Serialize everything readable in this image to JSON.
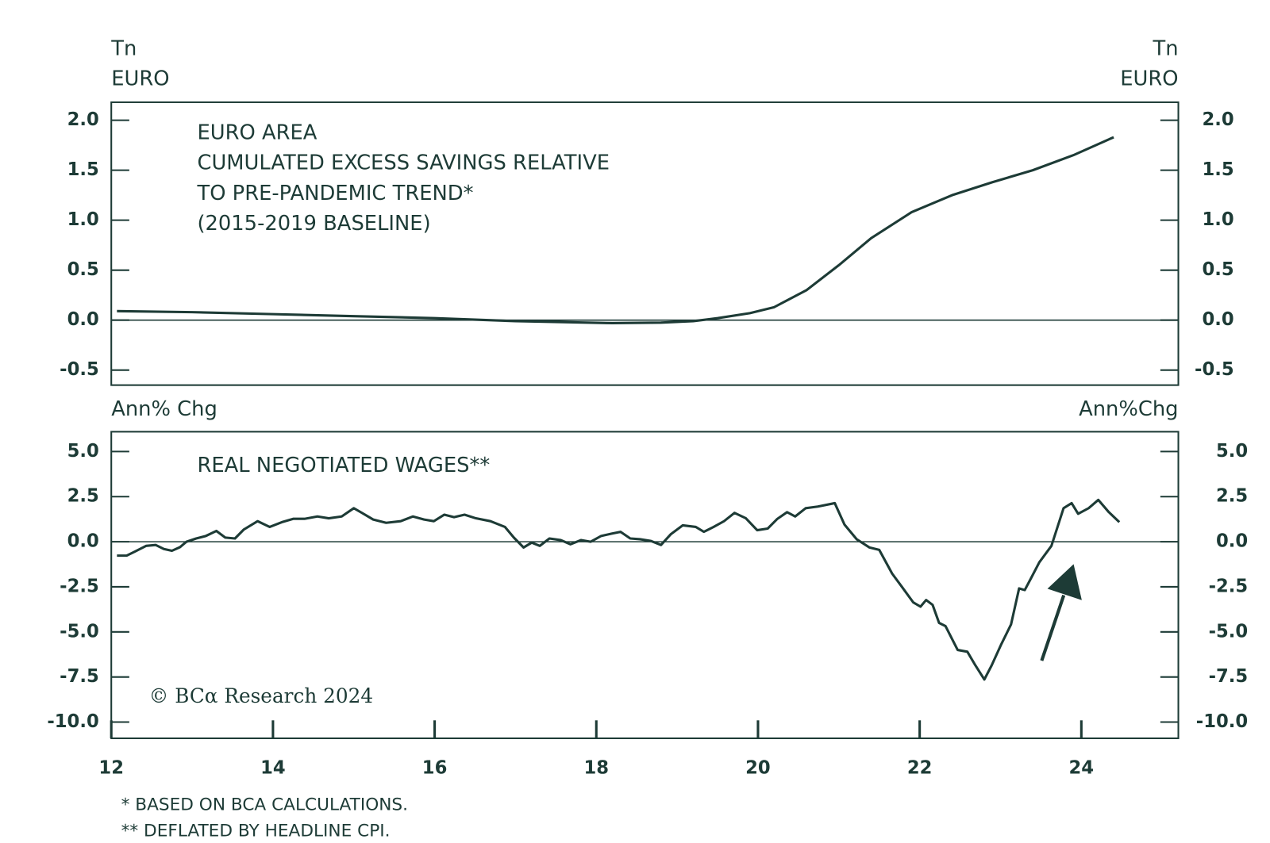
{
  "chart_data": [
    {
      "type": "line",
      "title": [
        "EURO AREA",
        "CUMULATED EXCESS SAVINGS RELATIVE",
        "TO PRE-PANDEMIC TREND*",
        "(2015-2019 BASELINE)"
      ],
      "y_label": [
        "Tn",
        "EURO"
      ],
      "y_label_right": [
        "Tn",
        "EURO"
      ],
      "color": "#1d3b36",
      "xlim": [
        12,
        25.2
      ],
      "ylim": [
        -0.65,
        2.18
      ],
      "yticks": [
        {
          "value": 2,
          "label": "2.0"
        },
        {
          "value": 1.5,
          "label": "1.5"
        },
        {
          "value": 1,
          "label": "1.0"
        },
        {
          "value": 0.5,
          "label": "0.5"
        },
        {
          "value": 0,
          "label": "0.0"
        },
        {
          "value": -0.5,
          "label": "-0.5"
        }
      ],
      "zero_line": true,
      "x": [
        12.07,
        13,
        14,
        15,
        16,
        17,
        17.6,
        18.2,
        18.8,
        19.2,
        19.5,
        19.9,
        20.2,
        20.6,
        21,
        21.4,
        21.9,
        22.4,
        22.9,
        23.4,
        23.9,
        24.4
      ],
      "values": [
        0.09,
        0.08,
        0.06,
        0.04,
        0.02,
        -0.01,
        -0.02,
        -0.03,
        -0.025,
        -0.01,
        0.02,
        0.07,
        0.13,
        0.3,
        0.55,
        0.82,
        1.08,
        1.25,
        1.38,
        1.5,
        1.65,
        1.83
      ]
    },
    {
      "type": "line",
      "title": [
        "REAL NEGOTIATED WAGES**"
      ],
      "y_label": [
        "Ann% Chg"
      ],
      "y_label_right": [
        "Ann%Chg"
      ],
      "color": "#1d3b36",
      "xlim": [
        12,
        25.2
      ],
      "xticks": [
        12,
        14,
        16,
        18,
        20,
        22,
        24
      ],
      "ylim": [
        -10.9,
        6.1
      ],
      "yticks": [
        {
          "value": 5,
          "label": "5.0"
        },
        {
          "value": 2.5,
          "label": "2.5"
        },
        {
          "value": 0,
          "label": "0.0"
        },
        {
          "value": -2.5,
          "label": "-2.5"
        },
        {
          "value": -5,
          "label": "-5.0"
        },
        {
          "value": -7.5,
          "label": "-7.5"
        },
        {
          "value": -10,
          "label": "-10.0"
        }
      ],
      "zero_line": true,
      "x": [
        12.07,
        12.19,
        12.29,
        12.43,
        12.55,
        12.65,
        12.75,
        12.85,
        12.93,
        13.05,
        13.17,
        13.3,
        13.41,
        13.53,
        13.64,
        13.81,
        13.96,
        14.12,
        14.25,
        14.39,
        14.55,
        14.69,
        14.85,
        15.0,
        15.1,
        15.24,
        15.4,
        15.58,
        15.73,
        15.87,
        15.99,
        16.12,
        16.24,
        16.37,
        16.51,
        16.69,
        16.87,
        16.98,
        17.1,
        17.2,
        17.3,
        17.42,
        17.56,
        17.68,
        17.81,
        17.93,
        18.06,
        18.19,
        18.3,
        18.42,
        18.54,
        18.67,
        18.8,
        18.92,
        19.07,
        19.23,
        19.33,
        19.45,
        19.58,
        19.71,
        19.85,
        19.99,
        20.12,
        20.24,
        20.36,
        20.46,
        20.59,
        20.74,
        20.95,
        21.07,
        21.22,
        21.38,
        21.5,
        21.66,
        21.78,
        21.92,
        22.01,
        22.08,
        22.16,
        22.24,
        22.32,
        22.47,
        22.59,
        22.69,
        22.8,
        22.89,
        23.01,
        23.13,
        23.23,
        23.3,
        23.38,
        23.48,
        23.63,
        23.78,
        23.88,
        23.96,
        24.09,
        24.21,
        24.34,
        24.47
      ],
      "values": [
        -0.77,
        -0.77,
        -0.55,
        -0.23,
        -0.18,
        -0.4,
        -0.5,
        -0.3,
        0,
        0.18,
        0.32,
        0.6,
        0.23,
        0.18,
        0.68,
        1.14,
        0.82,
        1.1,
        1.27,
        1.27,
        1.4,
        1.3,
        1.4,
        1.86,
        1.6,
        1.23,
        1.05,
        1.14,
        1.4,
        1.23,
        1.14,
        1.5,
        1.36,
        1.5,
        1.3,
        1.14,
        0.82,
        0.23,
        -0.32,
        -0.05,
        -0.23,
        0.18,
        0.09,
        -0.14,
        0.09,
        0,
        0.32,
        0.45,
        0.55,
        0.18,
        0.14,
        0.05,
        -0.18,
        0.41,
        0.91,
        0.82,
        0.55,
        0.82,
        1.14,
        1.6,
        1.3,
        0.64,
        0.73,
        1.27,
        1.64,
        1.4,
        1.86,
        1.95,
        2.14,
        0.95,
        0.14,
        -0.32,
        -0.45,
        -1.77,
        -2.5,
        -3.36,
        -3.6,
        -3.23,
        -3.5,
        -4.5,
        -4.68,
        -6.0,
        -6.1,
        -6.86,
        -7.64,
        -6.86,
        -5.68,
        -4.59,
        -2.59,
        -2.68,
        -2.0,
        -1.14,
        -0.23,
        1.86,
        2.14,
        1.55,
        1.86,
        2.32,
        1.64,
        1.09
      ]
    }
  ],
  "source": "© BCα Research 2024",
  "footnotes": [
    "* BASED ON BCA CALCULATIONS.",
    "** DEFLATED BY HEADLINE CPI."
  ]
}
